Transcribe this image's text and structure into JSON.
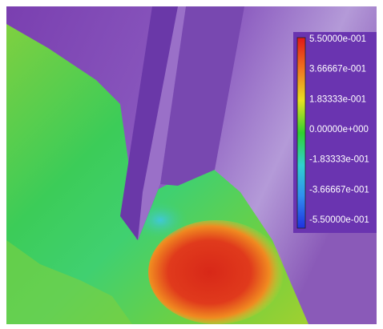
{
  "colorbar": {
    "labels": [
      "5.50000e-001",
      "3.66667e-001",
      "1.83333e-001",
      "0.00000e+000",
      "-1.83333e-001",
      "-3.66667e-001",
      "-5.50000e-001"
    ]
  }
}
